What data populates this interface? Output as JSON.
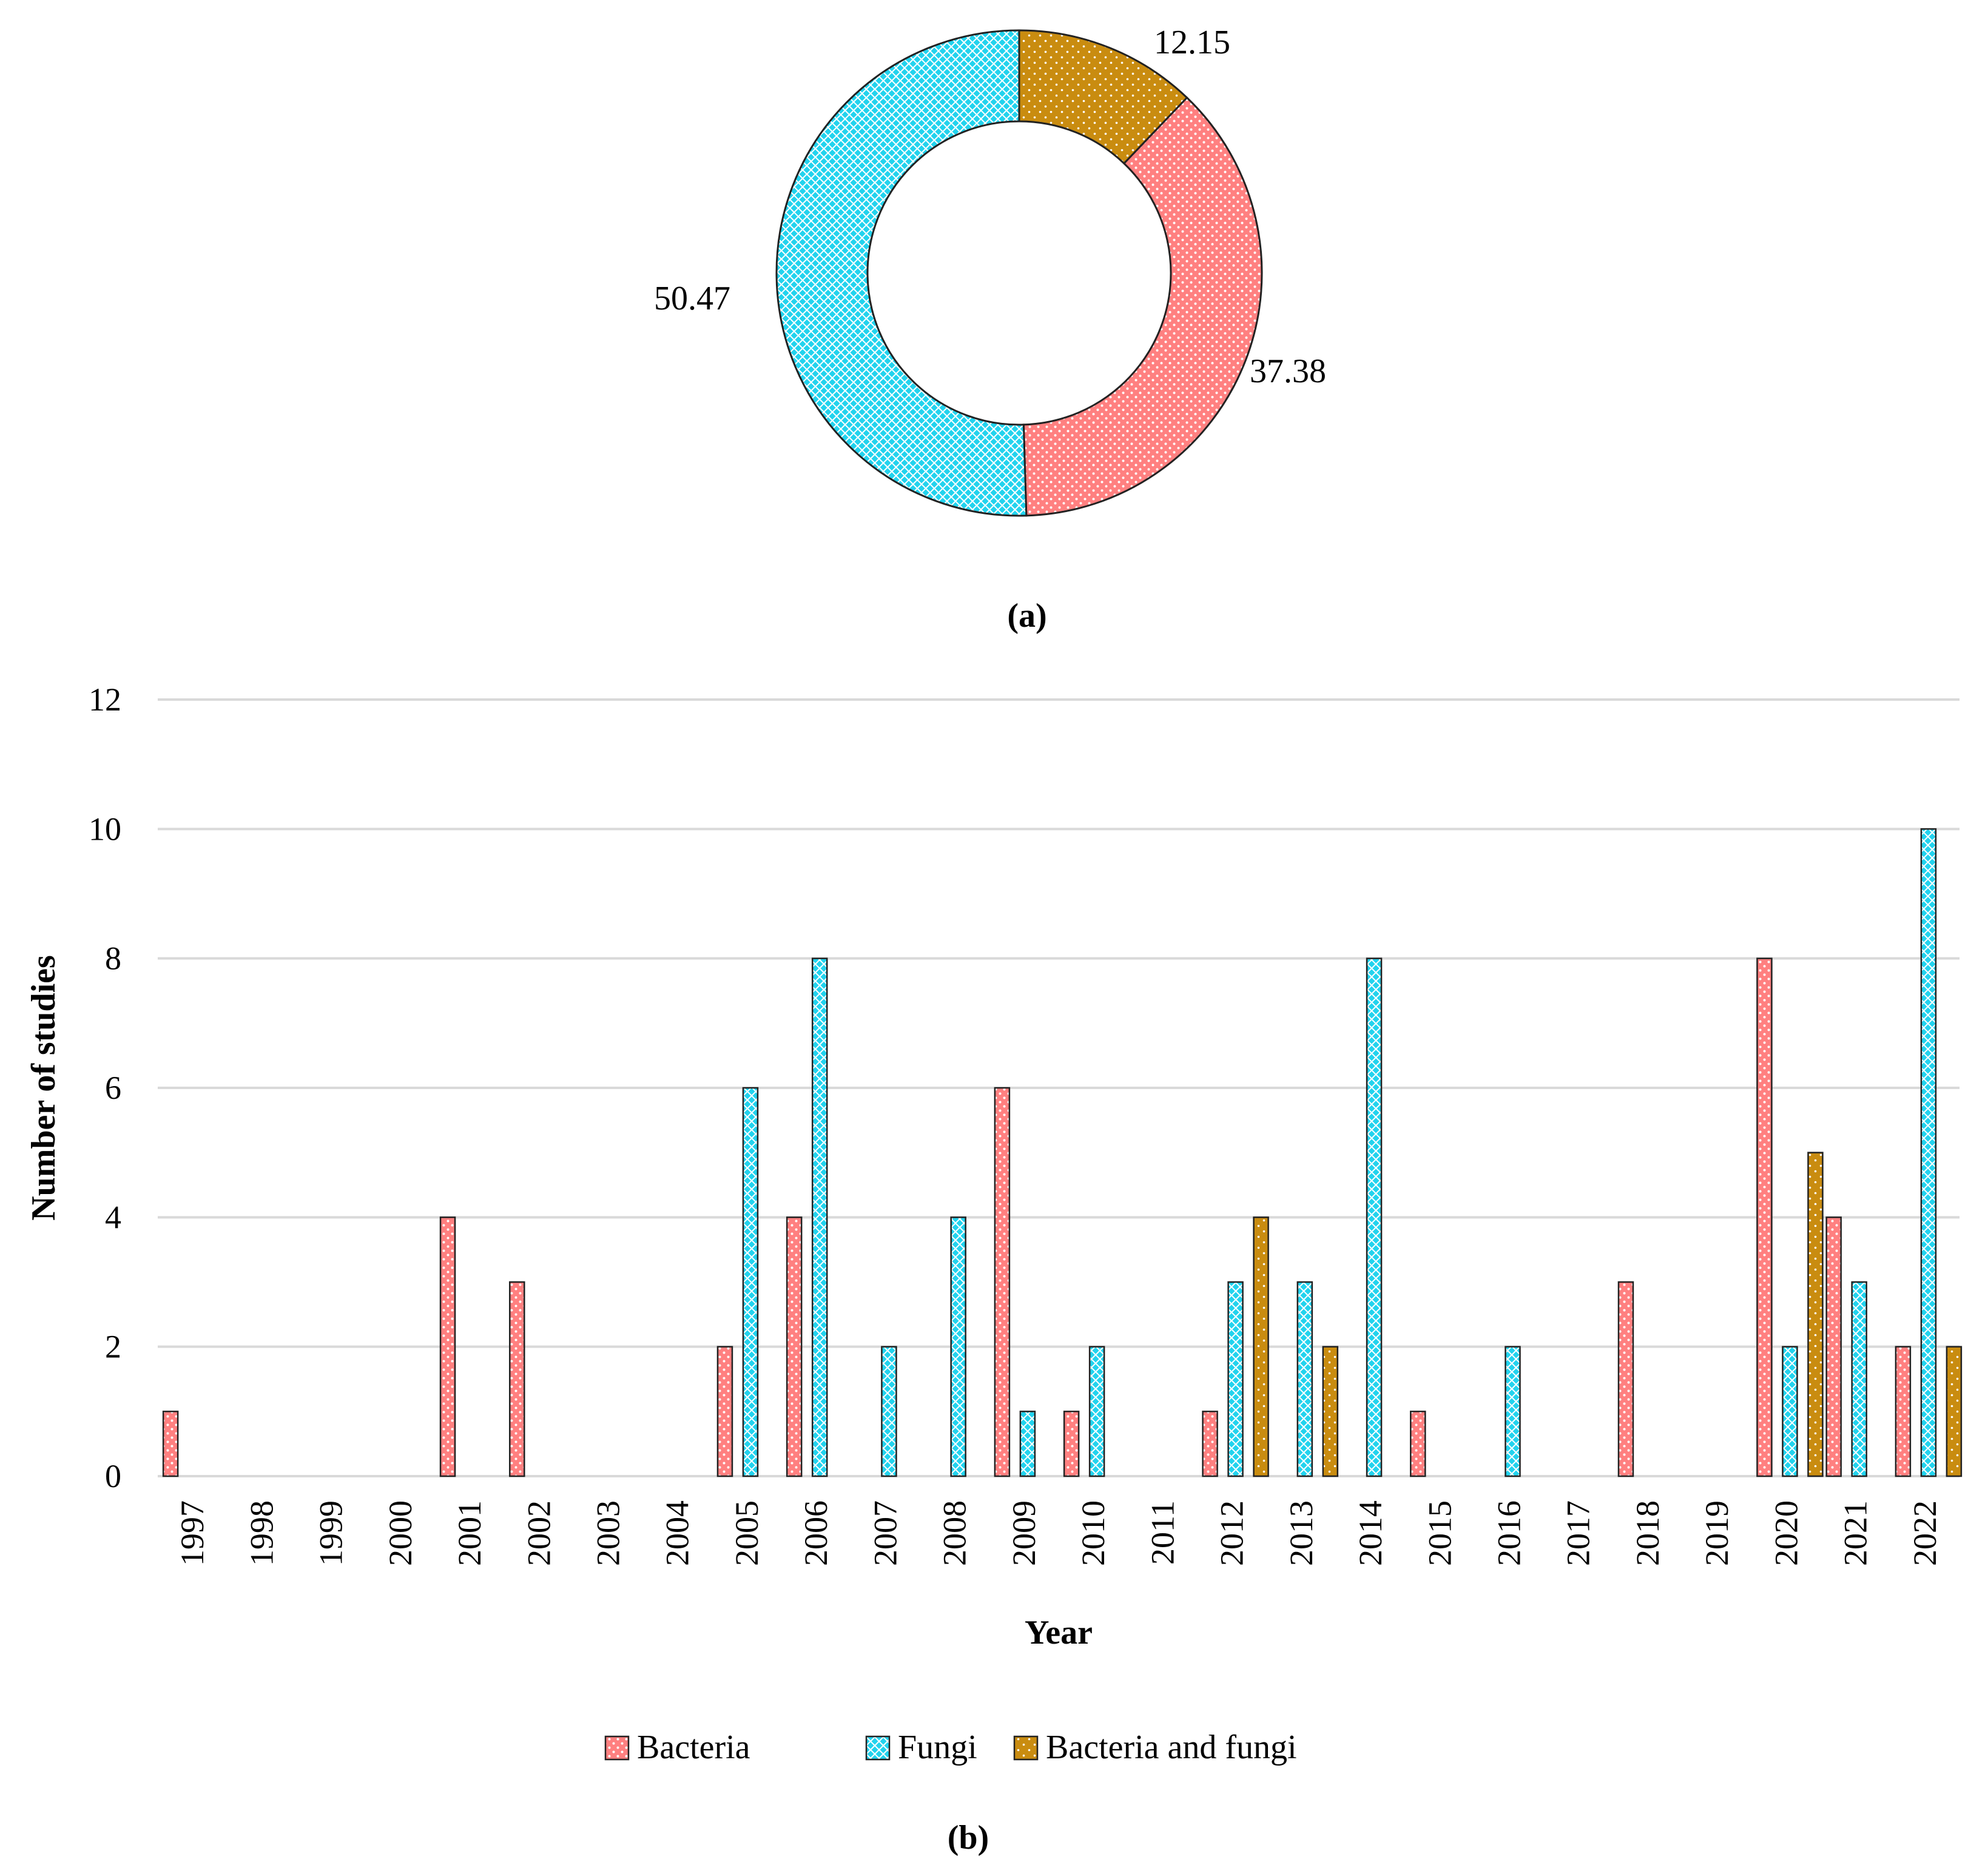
{
  "chart_data": [
    {
      "type": "pie",
      "variant": "donut",
      "caption": "(a)",
      "slices": [
        {
          "name": "Bacteria",
          "value": 37.38,
          "label": "37.38",
          "color": "#ff8080"
        },
        {
          "name": "Fungi",
          "value": 50.47,
          "label": "50.47",
          "color": "#22d3ee"
        },
        {
          "name": "Bacteria and fungi",
          "value": 12.15,
          "label": "12.15",
          "color": "#c98c10"
        }
      ]
    },
    {
      "type": "bar",
      "caption": "(b)",
      "xlabel": "Year",
      "ylabel": "Number of studies",
      "ylim": [
        0,
        12
      ],
      "yticks": [
        "0",
        "2",
        "4",
        "6",
        "8",
        "10",
        "12"
      ],
      "categories": [
        "1997",
        "1998",
        "1999",
        "2000",
        "2001",
        "2002",
        "2003",
        "2004",
        "2005",
        "2006",
        "2007",
        "2008",
        "2009",
        "2010",
        "2011",
        "2012",
        "2013",
        "2014",
        "2015",
        "2016",
        "2017",
        "2018",
        "2019",
        "2020",
        "2021",
        "2022"
      ],
      "series": [
        {
          "name": "Bacteria",
          "color": "#ff8080",
          "pattern": "pat-bact",
          "values": [
            1,
            0,
            0,
            0,
            4,
            3,
            0,
            0,
            2,
            4,
            0,
            0,
            6,
            1,
            0,
            1,
            0,
            0,
            1,
            0,
            0,
            3,
            0,
            8,
            4,
            2
          ]
        },
        {
          "name": "Fungi",
          "color": "#22d3ee",
          "pattern": "pat-fungi",
          "values": [
            0,
            0,
            0,
            0,
            0,
            0,
            0,
            0,
            6,
            8,
            2,
            4,
            1,
            2,
            0,
            3,
            3,
            8,
            0,
            2,
            0,
            0,
            0,
            2,
            3,
            10
          ]
        },
        {
          "name": "Bacteria and fungi",
          "color": "#c98c10",
          "pattern": "pat-both",
          "values": [
            0,
            0,
            0,
            0,
            0,
            0,
            0,
            0,
            0,
            0,
            0,
            0,
            0,
            0,
            0,
            4,
            2,
            0,
            0,
            0,
            0,
            0,
            0,
            5,
            0,
            2
          ]
        }
      ],
      "legend": [
        "Bacteria",
        "Fungi",
        "Bacteria and fungi"
      ],
      "legend_position": "bottom"
    }
  ]
}
